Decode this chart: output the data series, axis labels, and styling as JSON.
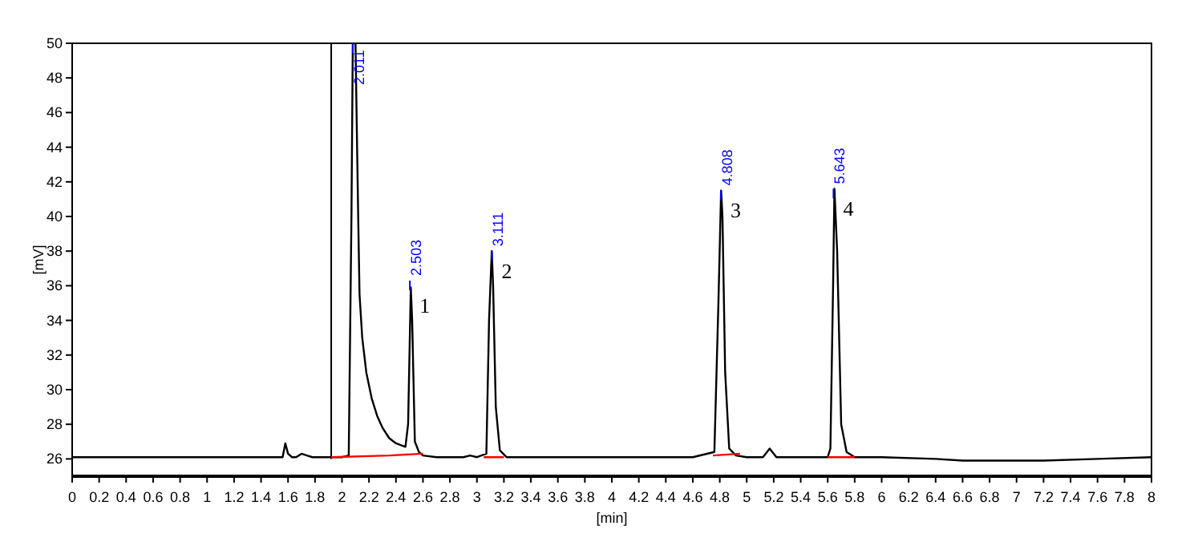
{
  "chart_data": {
    "type": "line",
    "xlabel": "[min]",
    "ylabel": "[mV]",
    "xlim": [
      0,
      8
    ],
    "ylim": [
      25,
      50
    ],
    "xticks": [
      0,
      0.2,
      0.4,
      0.6,
      0.8,
      1,
      1.2,
      1.4,
      1.6,
      1.8,
      2,
      2.2,
      2.4,
      2.6,
      2.8,
      3,
      3.2,
      3.4,
      3.6,
      3.8,
      4,
      4.2,
      4.4,
      4.6,
      4.8,
      5,
      5.2,
      5.4,
      5.6,
      5.8,
      6,
      6.2,
      6.4,
      6.6,
      6.8,
      7,
      7.2,
      7.4,
      7.6,
      7.8,
      8
    ],
    "yticks": [
      26,
      28,
      30,
      32,
      34,
      36,
      38,
      40,
      42,
      44,
      46,
      48,
      50
    ],
    "grid": false,
    "marker": "none",
    "line_style": "solid",
    "series": [
      {
        "color": "#000000",
        "x": [
          0,
          0.5,
          1,
          1.5,
          1.56,
          1.58,
          1.6,
          1.63,
          1.66,
          1.7,
          1.74,
          1.78,
          1.9,
          2.0,
          2.05,
          2.07,
          2.08,
          2.1,
          2.12,
          2.13,
          2.15,
          2.18,
          2.22,
          2.26,
          2.3,
          2.35,
          2.4,
          2.47,
          2.49,
          2.51,
          2.52,
          2.54,
          2.57,
          2.6,
          2.7,
          2.9,
          2.95,
          3.0,
          3.07,
          3.09,
          3.11,
          3.12,
          3.14,
          3.17,
          3.22,
          3.4,
          3.8,
          4.2,
          4.6,
          4.76,
          4.79,
          4.81,
          4.82,
          4.84,
          4.87,
          4.92,
          5.0,
          5.12,
          5.17,
          5.22,
          5.4,
          5.6,
          5.62,
          5.64,
          5.65,
          5.67,
          5.7,
          5.74,
          5.8,
          6.0,
          6.4,
          6.6,
          7.2,
          7.6,
          8
        ],
        "values": [
          26.1,
          26.1,
          26.1,
          26.1,
          26.1,
          26.9,
          26.3,
          26.1,
          26.1,
          26.3,
          26.2,
          26.1,
          26.1,
          26.1,
          26.2,
          40,
          50,
          50,
          40,
          35.5,
          33,
          31,
          29.5,
          28.5,
          27.8,
          27.2,
          26.9,
          26.7,
          28,
          35.9,
          34,
          27,
          26.4,
          26.2,
          26.1,
          26.1,
          26.2,
          26.1,
          26.3,
          34,
          38,
          36,
          29,
          26.5,
          26.1,
          26.1,
          26.1,
          26.1,
          26.1,
          26.4,
          35,
          41.5,
          40,
          31,
          26.6,
          26.2,
          26.1,
          26.1,
          26.6,
          26.1,
          26.1,
          26.1,
          26.6,
          36,
          41.6,
          38,
          28,
          26.4,
          26.1,
          26.1,
          26.0,
          25.9,
          25.9,
          26.0,
          26.1
        ]
      },
      {
        "color": "#ff0000",
        "x": [
          1.92,
          2.35,
          null,
          2.35,
          2.6,
          null,
          3.05,
          3.2,
          null,
          4.75,
          4.95,
          null,
          5.6,
          5.8
        ],
        "values": [
          26.1,
          26.2,
          null,
          26.2,
          26.3,
          null,
          26.1,
          26.1,
          null,
          26.2,
          26.3,
          null,
          26.1,
          26.1
        ]
      }
    ],
    "ref_lines": [
      {
        "axis": "x",
        "value": 1.92,
        "color": "#000000"
      }
    ],
    "annotations": [
      {
        "text": "2.011",
        "x": 2.08,
        "y": 50
      },
      {
        "text": "2.503",
        "x": 2.503,
        "y": 36.3
      },
      {
        "text": "3.111",
        "x": 3.111,
        "y": 38
      },
      {
        "text": "4.808",
        "x": 4.808,
        "y": 41.5
      },
      {
        "text": "5.643",
        "x": 5.643,
        "y": 41.6
      },
      {
        "text": "1",
        "x": 2.503,
        "y": 35
      },
      {
        "text": "2",
        "x": 3.111,
        "y": 37
      },
      {
        "text": "3",
        "x": 4.808,
        "y": 40.5
      },
      {
        "text": "4",
        "x": 5.643,
        "y": 40.6
      }
    ]
  }
}
